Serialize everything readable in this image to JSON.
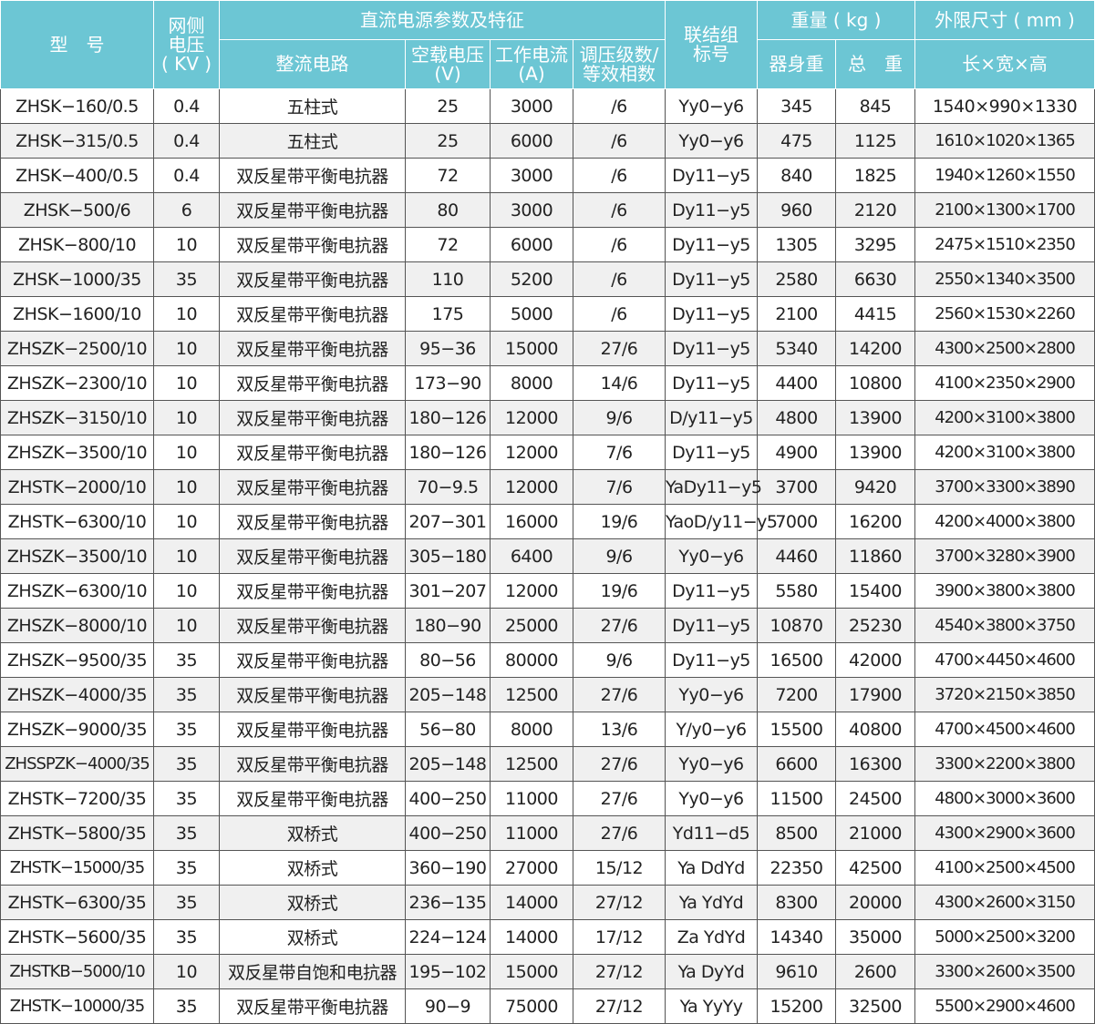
{
  "header": {
    "model": "型　号",
    "grid_voltage": [
      "网侧",
      "电压",
      "( KV )"
    ],
    "dc_group": "直流电源参数及特征",
    "rectifier": "整流电路",
    "no_load_voltage": [
      "空载电压",
      "(V)"
    ],
    "working_current": [
      "工作电流",
      "(A)"
    ],
    "regulation": [
      "调压级数/",
      "等效相数"
    ],
    "connection": [
      "联结组",
      "标号"
    ],
    "weight_group": "重量 ( kg )",
    "body_weight": "器身重",
    "total_weight": "总　重",
    "dimension_group": "外限尺寸 ( mm )",
    "dimension": "长×宽×高"
  },
  "colors": {
    "header_bg": "#6cc6d4",
    "row_alt": "#f0f0f0"
  },
  "rows": [
    [
      "ZHSK−160/0.5",
      "0.4",
      "五柱式",
      "25",
      "3000",
      "/6",
      "Yy0−y6",
      "345",
      "845",
      "1540×990×1330"
    ],
    [
      "ZHSK−315/0.5",
      "0.4",
      "五柱式",
      "25",
      "6000",
      "/6",
      "Yy0−y6",
      "475",
      "1125",
      "1610×1020×1365"
    ],
    [
      "ZHSK−400/0.5",
      "0.4",
      "双反星带平衡电抗器",
      "72",
      "3000",
      "/6",
      "Dy11−y5",
      "840",
      "1825",
      "1940×1260×1550"
    ],
    [
      "ZHSK−500/6",
      "6",
      "双反星带平衡电抗器",
      "80",
      "3000",
      "/6",
      "Dy11−y5",
      "960",
      "2120",
      "2100×1300×1700"
    ],
    [
      "ZHSK−800/10",
      "10",
      "双反星带平衡电抗器",
      "72",
      "6000",
      "/6",
      "Dy11−y5",
      "1305",
      "3295",
      "2475×1510×2350"
    ],
    [
      "ZHSK−1000/35",
      "35",
      "双反星带平衡电抗器",
      "110",
      "5200",
      "/6",
      "Dy11−y5",
      "2580",
      "6630",
      "2550×1340×3500"
    ],
    [
      "ZHSK−1600/10",
      "10",
      "双反星带平衡电抗器",
      "175",
      "5000",
      "/6",
      "Dy11−y5",
      "2100",
      "4415",
      "2560×1530×2260"
    ],
    [
      "ZHSZK−2500/10",
      "10",
      "双反星带平衡电抗器",
      "95−36",
      "15000",
      "27/6",
      "Dy11−y5",
      "5340",
      "14200",
      "4300×2500×2800"
    ],
    [
      "ZHSZK−2300/10",
      "10",
      "双反星带平衡电抗器",
      "173−90",
      "8000",
      "14/6",
      "Dy11−y5",
      "4400",
      "10800",
      "4100×2350×2900"
    ],
    [
      "ZHSZK−3150/10",
      "10",
      "双反星带平衡电抗器",
      "180−126",
      "12000",
      "9/6",
      "D/y11−y5",
      "4800",
      "13900",
      "4200×3100×3800"
    ],
    [
      "ZHSZK−3500/10",
      "10",
      "双反星带平衡电抗器",
      "180−126",
      "12000",
      "7/6",
      "Dy11−y5",
      "4900",
      "13900",
      "4200×3100×3800"
    ],
    [
      "ZHSTK−2000/10",
      "10",
      "双反星带平衡电抗器",
      "70−9.5",
      "12000",
      "7/6",
      "YaDy11−y5",
      "3700",
      "9420",
      "3700×3300×3890"
    ],
    [
      "ZHSTK−6300/10",
      "10",
      "双反星带平衡电抗器",
      "207−301",
      "16000",
      "19/6",
      "YaoD/y11−y5",
      "7000",
      "16200",
      "4200×4000×3800"
    ],
    [
      "ZHSZK−3500/10",
      "10",
      "双反星带平衡电抗器",
      "305−180",
      "6400",
      "9/6",
      "Yy0−y6",
      "4460",
      "11860",
      "3700×3280×3900"
    ],
    [
      "ZHSZK−6300/10",
      "10",
      "双反星带平衡电抗器",
      "301−207",
      "12000",
      "19/6",
      "Dy11−y5",
      "5580",
      "15400",
      "3900×3800×3800"
    ],
    [
      "ZHSZK−8000/10",
      "10",
      "双反星带平衡电抗器",
      "180−90",
      "25000",
      "27/6",
      "Dy11−y5",
      "10870",
      "25230",
      "4540×3800×3750"
    ],
    [
      "ZHSZK−9500/35",
      "35",
      "双反星带平衡电抗器",
      "80−56",
      "80000",
      "9/6",
      "Dy11−y5",
      "16500",
      "42000",
      "4700×4450×4600"
    ],
    [
      "ZHSZK−4000/35",
      "35",
      "双反星带平衡电抗器",
      "205−148",
      "12500",
      "27/6",
      "Yy0−y6",
      "7200",
      "17900",
      "3720×2150×3850"
    ],
    [
      "ZHSZK−9000/35",
      "35",
      "双反星带平衡电抗器",
      "56−80",
      "8000",
      "13/6",
      "Y/y0−y6",
      "15500",
      "40800",
      "4700×4500×4600"
    ],
    [
      "ZHSSPZK−4000/35",
      "35",
      "双反星带平衡电抗器",
      "205−148",
      "12500",
      "27/6",
      "Yy0−y6",
      "6600",
      "16300",
      "3300×2200×3800"
    ],
    [
      "ZHSTK−7200/35",
      "35",
      "双反星带平衡电抗器",
      "400−250",
      "11000",
      "27/6",
      "Yy0−y6",
      "11500",
      "24500",
      "4800×3000×3600"
    ],
    [
      "ZHSTK−5800/35",
      "35",
      "双桥式",
      "400−250",
      "11000",
      "27/6",
      "Yd11−d5",
      "8500",
      "21000",
      "4300×2900×3600"
    ],
    [
      "ZHSTK−15000/35",
      "35",
      "双桥式",
      "360−190",
      "27000",
      "15/12",
      "Ya DdYd",
      "22350",
      "42500",
      "4100×2500×4500"
    ],
    [
      "ZHSTK−6300/35",
      "35",
      "双桥式",
      "236−135",
      "14000",
      "27/12",
      "Ya YdYd",
      "8300",
      "20000",
      "4300×2600×3150"
    ],
    [
      "ZHSTK−5600/35",
      "35",
      "双桥式",
      "224−124",
      "14000",
      "17/12",
      "Za YdYd",
      "14340",
      "35000",
      "5000×2500×3200"
    ],
    [
      "ZHSTKB−5000/10",
      "10",
      "双反星带自饱和电抗器",
      "195−102",
      "15000",
      "27/12",
      "Ya DyYd",
      "9610",
      "2600",
      "3300×2600×3500"
    ],
    [
      "ZHSTK−10000/35",
      "35",
      "双反星带平衡电抗器",
      "90−9",
      "75000",
      "27/12",
      "Ya YyYy",
      "15200",
      "32500",
      "5500×2900×4600"
    ]
  ]
}
